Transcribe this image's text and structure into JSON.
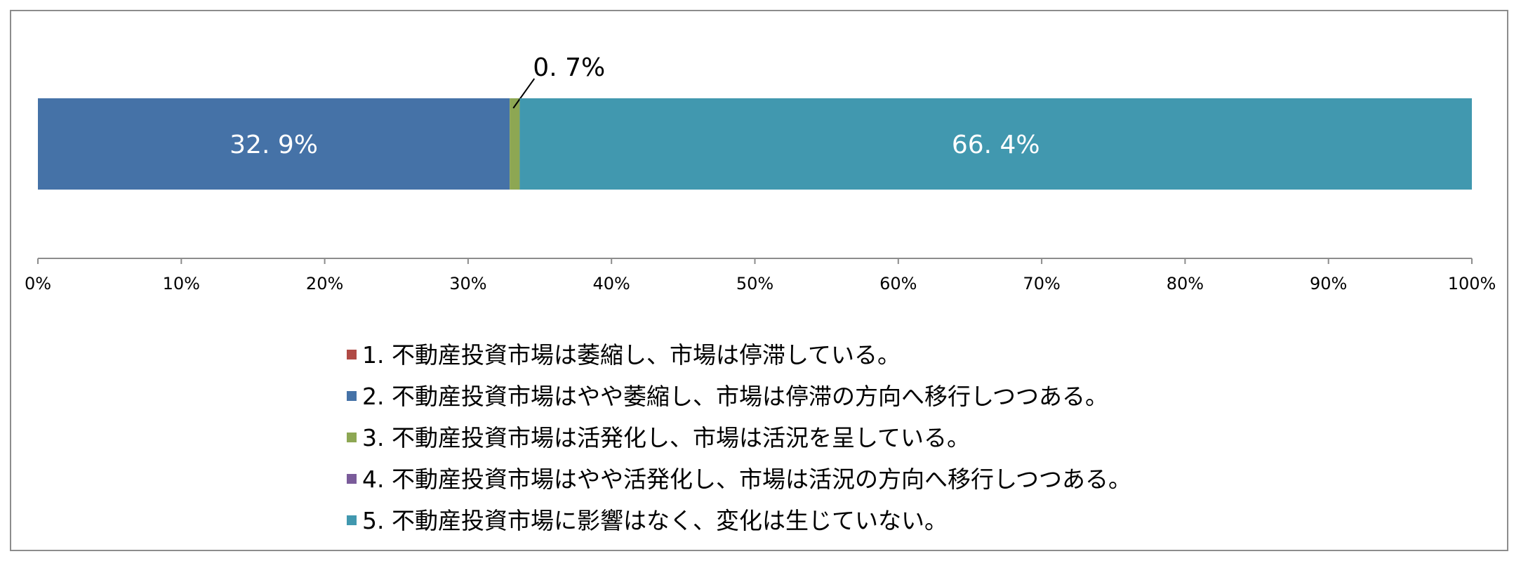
{
  "chart_data": {
    "type": "bar",
    "orientation": "horizontal-stacked-100",
    "title": "",
    "xlabel": "",
    "ylabel": "",
    "xlim": [
      0,
      100
    ],
    "x_ticks": [
      "0%",
      "10%",
      "20%",
      "30%",
      "40%",
      "50%",
      "60%",
      "70%",
      "80%",
      "90%",
      "100%"
    ],
    "grid": false,
    "legend_position": "bottom",
    "series": [
      {
        "name": "1. 不動産投資市場は萎縮し、市場は停滞している。",
        "value": 0.0,
        "label": "",
        "color": "#b04a45"
      },
      {
        "name": "2. 不動産投資市場はやや萎縮し、市場は停滞の方向へ移行しつつある。",
        "value": 32.9,
        "label": "32. 9%",
        "color": "#4572a7"
      },
      {
        "name": "3. 不動産投資市場は活発化し、市場は活況を呈している。",
        "value": 0.7,
        "label": "0. 7%",
        "color": "#8da753"
      },
      {
        "name": "4. 不動産投資市場はやや活発化し、市場は活況の方向へ移行しつつある。",
        "value": 0.0,
        "label": "",
        "color": "#7a5b9a"
      },
      {
        "name": "5. 不動産投資市場に影響はなく、変化は生じていない。",
        "value": 66.4,
        "label": "66. 4%",
        "color": "#4198af"
      }
    ]
  }
}
